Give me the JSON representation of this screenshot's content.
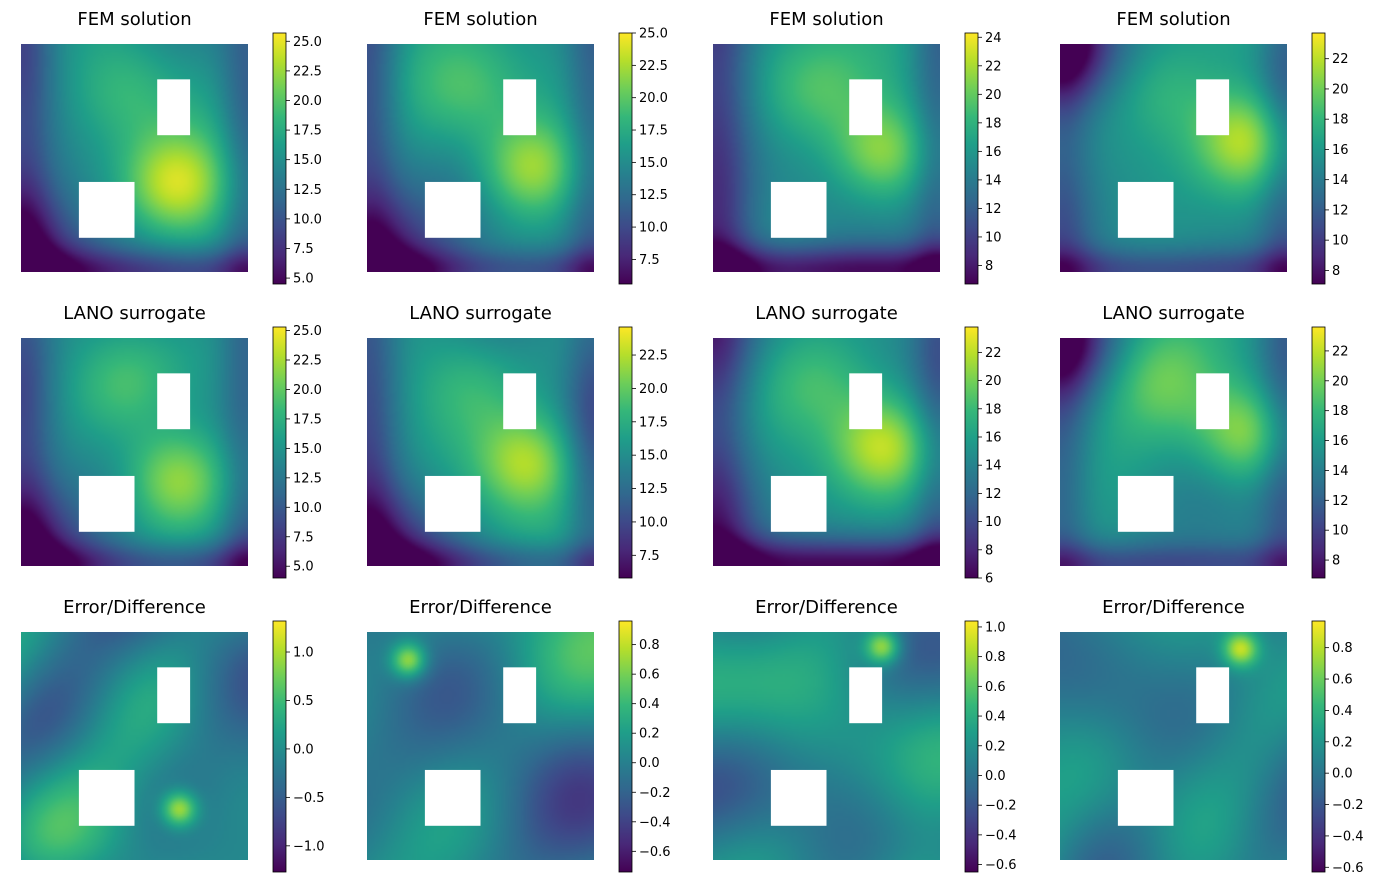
{
  "figure": {
    "rows": [
      "FEM solution",
      "LANO surrogate",
      "Error/Difference"
    ],
    "colormap": [
      "#440154",
      "#482878",
      "#3e4989",
      "#31688e",
      "#26828e",
      "#1f9e89",
      "#35b779",
      "#6ece58",
      "#b5de2b",
      "#fde725"
    ]
  },
  "chart_data": [
    {
      "type": "heatmap",
      "title": "FEM solution",
      "seed": 11,
      "low_corner": "bottom-left",
      "hot": [
        0.68,
        0.62
      ],
      "colorbar": {
        "range": [
          4.5,
          25.7
        ],
        "ticks": [
          5.0,
          7.5,
          10.0,
          12.5,
          15.0,
          17.5,
          20.0,
          22.5,
          25.0
        ],
        "tick_labels": [
          "5.0",
          "7.5",
          "10.0",
          "12.5",
          "15.0",
          "17.5",
          "20.0",
          "22.5",
          "25.0"
        ]
      }
    },
    {
      "type": "heatmap",
      "title": "FEM solution",
      "seed": 23,
      "low_corner": "bottom-left",
      "hot": [
        0.72,
        0.55
      ],
      "colorbar": {
        "range": [
          5.6,
          25.0
        ],
        "ticks": [
          7.5,
          10.0,
          12.5,
          15.0,
          17.5,
          20.0,
          22.5,
          25.0
        ],
        "tick_labels": [
          "7.5",
          "10.0",
          "12.5",
          "15.0",
          "17.5",
          "20.0",
          "22.5",
          "25.0"
        ]
      }
    },
    {
      "type": "heatmap",
      "title": "FEM solution",
      "seed": 37,
      "low_corner": "left",
      "hot": [
        0.75,
        0.48
      ],
      "colorbar": {
        "range": [
          6.7,
          24.3
        ],
        "ticks": [
          8,
          10,
          12,
          14,
          16,
          18,
          20,
          22,
          24
        ],
        "tick_labels": [
          "8",
          "10",
          "12",
          "14",
          "16",
          "18",
          "20",
          "22",
          "24"
        ]
      }
    },
    {
      "type": "heatmap",
      "title": "FEM solution",
      "seed": 41,
      "low_corner": "top-left",
      "hot": [
        0.82,
        0.42
      ],
      "colorbar": {
        "range": [
          7.1,
          23.7
        ],
        "ticks": [
          8,
          10,
          12,
          14,
          16,
          18,
          20,
          22
        ],
        "tick_labels": [
          "8",
          "10",
          "12",
          "14",
          "16",
          "18",
          "20",
          "22"
        ]
      }
    },
    {
      "type": "heatmap",
      "title": "LANO surrogate",
      "seed": 12,
      "low_corner": "bottom-left",
      "hot": [
        0.68,
        0.62
      ],
      "colorbar": {
        "range": [
          4.0,
          25.3
        ],
        "ticks": [
          5.0,
          7.5,
          10.0,
          12.5,
          15.0,
          17.5,
          20.0,
          22.5,
          25.0
        ],
        "tick_labels": [
          "5.0",
          "7.5",
          "10.0",
          "12.5",
          "15.0",
          "17.5",
          "20.0",
          "22.5",
          "25.0"
        ]
      }
    },
    {
      "type": "heatmap",
      "title": "LANO surrogate",
      "seed": 24,
      "low_corner": "bottom-left",
      "hot": [
        0.72,
        0.55
      ],
      "colorbar": {
        "range": [
          5.8,
          24.6
        ],
        "ticks": [
          7.5,
          10.0,
          12.5,
          15.0,
          17.5,
          20.0,
          22.5
        ],
        "tick_labels": [
          "7.5",
          "10.0",
          "12.5",
          "15.0",
          "17.5",
          "20.0",
          "22.5"
        ]
      }
    },
    {
      "type": "heatmap",
      "title": "LANO surrogate",
      "seed": 38,
      "low_corner": "left",
      "hot": [
        0.75,
        0.48
      ],
      "colorbar": {
        "range": [
          6.0,
          23.8
        ],
        "ticks": [
          6,
          8,
          10,
          12,
          14,
          16,
          18,
          20,
          22
        ],
        "tick_labels": [
          "6",
          "8",
          "10",
          "12",
          "14",
          "16",
          "18",
          "20",
          "22"
        ]
      }
    },
    {
      "type": "heatmap",
      "title": "LANO surrogate",
      "seed": 42,
      "low_corner": "top-left",
      "hot": [
        0.82,
        0.42
      ],
      "colorbar": {
        "range": [
          6.8,
          23.6
        ],
        "ticks": [
          8,
          10,
          12,
          14,
          16,
          18,
          20,
          22
        ],
        "tick_labels": [
          "8",
          "10",
          "12",
          "14",
          "16",
          "18",
          "20",
          "22"
        ]
      }
    },
    {
      "type": "heatmap",
      "title": "Error/Difference",
      "seed": 101,
      "low_corner": "none",
      "hot": [
        0.7,
        0.78
      ],
      "colorbar": {
        "range": [
          -1.27,
          1.32
        ],
        "ticks": [
          -1.0,
          -0.5,
          0.0,
          0.5,
          1.0
        ],
        "tick_labels": [
          "−1.0",
          "−0.5",
          "0.0",
          "0.5",
          "1.0"
        ]
      }
    },
    {
      "type": "heatmap",
      "title": "Error/Difference",
      "seed": 202,
      "low_corner": "none",
      "hot": [
        0.18,
        0.12
      ],
      "colorbar": {
        "range": [
          -0.74,
          0.96
        ],
        "ticks": [
          -0.6,
          -0.4,
          -0.2,
          0.0,
          0.2,
          0.4,
          0.6,
          0.8
        ],
        "tick_labels": [
          "−0.6",
          "−0.4",
          "−0.2",
          "0.0",
          "0.2",
          "0.4",
          "0.6",
          "0.8"
        ]
      }
    },
    {
      "type": "heatmap",
      "title": "Error/Difference",
      "seed": 303,
      "low_corner": "none",
      "hot": [
        0.75,
        0.06
      ],
      "colorbar": {
        "range": [
          -0.65,
          1.04
        ],
        "ticks": [
          -0.6,
          -0.4,
          -0.2,
          0.0,
          0.2,
          0.4,
          0.6,
          0.8,
          1.0
        ],
        "tick_labels": [
          "−0.6",
          "−0.4",
          "−0.2",
          "0.0",
          "0.2",
          "0.4",
          "0.6",
          "0.8",
          "1.0"
        ]
      }
    },
    {
      "type": "heatmap",
      "title": "Error/Difference",
      "seed": 404,
      "low_corner": "none",
      "hot": [
        0.8,
        0.07
      ],
      "colorbar": {
        "range": [
          -0.63,
          0.97
        ],
        "ticks": [
          -0.6,
          -0.4,
          -0.2,
          0.0,
          0.2,
          0.4,
          0.6,
          0.8
        ],
        "tick_labels": [
          "−0.6",
          "−0.4",
          "−0.2",
          "0.0",
          "0.2",
          "0.4",
          "0.6",
          "0.8"
        ]
      }
    }
  ]
}
